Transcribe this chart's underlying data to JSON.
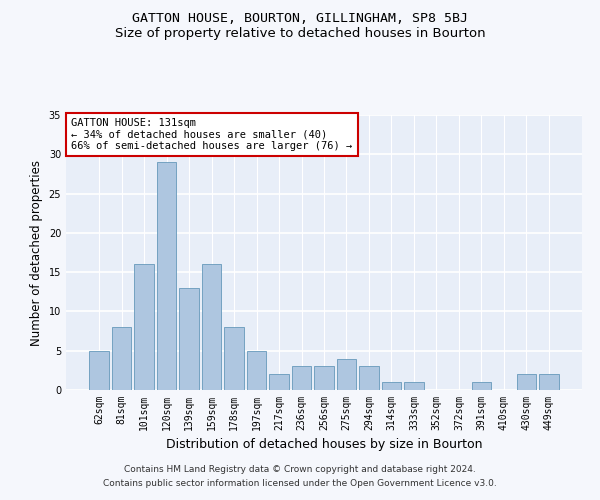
{
  "title": "GATTON HOUSE, BOURTON, GILLINGHAM, SP8 5BJ",
  "subtitle": "Size of property relative to detached houses in Bourton",
  "xlabel": "Distribution of detached houses by size in Bourton",
  "ylabel": "Number of detached properties",
  "categories": [
    "62sqm",
    "81sqm",
    "101sqm",
    "120sqm",
    "139sqm",
    "159sqm",
    "178sqm",
    "197sqm",
    "217sqm",
    "236sqm",
    "256sqm",
    "275sqm",
    "294sqm",
    "314sqm",
    "333sqm",
    "352sqm",
    "372sqm",
    "391sqm",
    "410sqm",
    "430sqm",
    "449sqm"
  ],
  "values": [
    5,
    8,
    16,
    29,
    13,
    16,
    8,
    5,
    2,
    3,
    3,
    4,
    3,
    1,
    1,
    0,
    0,
    1,
    0,
    2,
    2
  ],
  "bar_color": "#aec6e0",
  "bar_edge_color": "#6699bb",
  "annotation_box_text": "GATTON HOUSE: 131sqm\n← 34% of detached houses are smaller (40)\n66% of semi-detached houses are larger (76) →",
  "annotation_box_color": "#ffffff",
  "annotation_box_edge_color": "#cc0000",
  "ylim": [
    0,
    35
  ],
  "yticks": [
    0,
    5,
    10,
    15,
    20,
    25,
    30,
    35
  ],
  "plot_bg_color": "#e8eef8",
  "fig_bg_color": "#f5f7fc",
  "grid_color": "#ffffff",
  "footer_line1": "Contains HM Land Registry data © Crown copyright and database right 2024.",
  "footer_line2": "Contains public sector information licensed under the Open Government Licence v3.0.",
  "title_fontsize": 9.5,
  "subtitle_fontsize": 9.5,
  "xlabel_fontsize": 9,
  "ylabel_fontsize": 8.5,
  "tick_fontsize": 7,
  "annotation_fontsize": 7.5,
  "footer_fontsize": 6.5
}
